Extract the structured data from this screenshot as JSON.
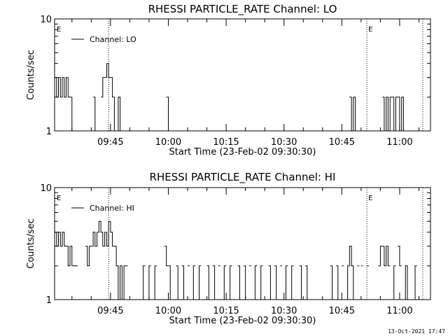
{
  "footer_timestamp": "13-Oct-2021 17:47",
  "chart_data": [
    {
      "type": "line",
      "title": "RHESSI PARTICLE_RATE Channel: LO",
      "xlabel": "Start Time (23-Feb-02 09:30:30)",
      "ylabel": "Counts/sec",
      "yscale": "log",
      "ylim": [
        1,
        10
      ],
      "ytick_labels": [
        "1",
        "10"
      ],
      "xlim": [
        "09:30:30",
        "11:08:00"
      ],
      "xtick_labels": [
        "09:45",
        "10:00",
        "10:15",
        "10:30",
        "10:45",
        "11:00"
      ],
      "legend": {
        "position": "top-left",
        "entries": [
          "Channel: LO"
        ]
      },
      "markers": [
        {
          "label": "E",
          "time": "09:30:30",
          "style": "none"
        },
        {
          "label": "",
          "time": "09:44:30",
          "style": "dotted"
        },
        {
          "label": "E",
          "time": "10:51:30",
          "style": "dotted"
        },
        {
          "label": "",
          "time": "11:06:00",
          "style": "dotted"
        }
      ],
      "series": [
        {
          "name": "Channel: LO",
          "x": [
            "09:30:30",
            "09:31:00",
            "09:31:30",
            "09:32:00",
            "09:32:30",
            "09:33:00",
            "09:33:30",
            "09:34:00",
            "09:34:30",
            "09:35:00",
            "09:37:30",
            "09:40:30",
            "09:41:00",
            "09:42:30",
            "09:43:00",
            "09:43:30",
            "09:44:00",
            "09:44:30",
            "09:45:00",
            "09:45:30",
            "09:46:00",
            "09:46:30",
            "09:47:00",
            "09:47:30",
            "09:48:00",
            "09:59:30",
            "10:00:00",
            "10:00:30",
            "10:47:00",
            "10:47:30",
            "10:48:00",
            "10:48:30",
            "10:49:00",
            "10:55:30",
            "10:56:00",
            "10:56:30",
            "10:57:00",
            "10:57:30",
            "10:58:00",
            "10:58:30",
            "10:59:00",
            "10:59:30",
            "11:00:00",
            "11:00:30",
            "11:01:00",
            "11:01:30",
            "11:02:00"
          ],
          "values": [
            3,
            2,
            3,
            2,
            3,
            2,
            3,
            2,
            2,
            1,
            1,
            2,
            1,
            2,
            3,
            3,
            4,
            3,
            3,
            2,
            1,
            1,
            2,
            1,
            1,
            2,
            1,
            1,
            2,
            1,
            2,
            1,
            1,
            2,
            1,
            2,
            1,
            2,
            2,
            1,
            2,
            2,
            1,
            2,
            1,
            1,
            1
          ]
        }
      ]
    },
    {
      "type": "line",
      "title": "RHESSI PARTICLE_RATE Channel: HI",
      "xlabel": "Start Time (23-Feb-02 09:30:30)",
      "ylabel": "Counts/sec",
      "yscale": "log",
      "ylim": [
        1,
        10
      ],
      "ytick_labels": [
        "1",
        "10"
      ],
      "xlim": [
        "09:30:30",
        "11:08:00"
      ],
      "xtick_labels": [
        "09:45",
        "10:00",
        "10:15",
        "10:30",
        "10:45",
        "11:00"
      ],
      "legend": {
        "position": "top-left",
        "entries": [
          "Channel: HI"
        ]
      },
      "markers": [
        {
          "label": "E",
          "time": "09:30:30",
          "style": "none"
        },
        {
          "label": "",
          "time": "09:44:30",
          "style": "dotted"
        },
        {
          "label": "E",
          "time": "10:51:30",
          "style": "dotted"
        },
        {
          "label": "",
          "time": "11:06:00",
          "style": "dotted"
        }
      ],
      "series": [
        {
          "name": "Channel: HI",
          "x": [
            "09:30:30",
            "09:31:00",
            "09:31:30",
            "09:32:00",
            "09:32:30",
            "09:33:00",
            "09:33:30",
            "09:34:00",
            "09:34:30",
            "09:35:00",
            "09:35:30",
            "09:36:00",
            "09:38:30",
            "09:39:00",
            "09:39:30",
            "09:40:00",
            "09:40:30",
            "09:41:00",
            "09:41:30",
            "09:42:00",
            "09:42:30",
            "09:43:00",
            "09:43:30",
            "09:44:00",
            "09:44:30",
            "09:45:00",
            "09:45:30",
            "09:46:00",
            "09:46:30",
            "09:47:00",
            "09:47:30",
            "09:48:00",
            "09:48:30",
            "09:49:00",
            "09:53:00",
            "09:53:30",
            "09:54:30",
            "09:55:00",
            "09:56:00",
            "09:56:30",
            "09:57:30",
            "09:59:00",
            "09:59:30",
            "10:00:00",
            "10:00:30",
            "10:02:00",
            "10:02:30",
            "10:03:30",
            "10:04:00",
            "10:05:00",
            "10:06:00",
            "10:06:30",
            "10:07:30",
            "10:08:00",
            "10:09:00",
            "10:10:00",
            "10:10:30",
            "10:11:30",
            "10:12:00",
            "10:13:00",
            "10:14:00",
            "10:14:30",
            "10:15:30",
            "10:16:00",
            "10:17:00",
            "10:18:00",
            "10:18:30",
            "10:19:30",
            "10:20:00",
            "10:21:00",
            "10:22:00",
            "10:22:30",
            "10:23:30",
            "10:24:00",
            "10:25:00",
            "10:26:00",
            "10:26:30",
            "10:27:30",
            "10:28:00",
            "10:29:00",
            "10:30:00",
            "10:30:30",
            "10:31:30",
            "10:32:00",
            "10:33:00",
            "10:34:00",
            "10:34:30",
            "10:35:30",
            "10:36:00",
            "10:37:00",
            "10:42:00",
            "10:42:30",
            "10:43:30",
            "10:44:00",
            "10:45:00",
            "10:46:00",
            "10:46:30",
            "10:47:00",
            "10:47:30",
            "10:48:00",
            "10:49:00",
            "10:50:00",
            "10:51:30",
            "10:54:30",
            "10:55:00",
            "10:55:30",
            "10:56:00",
            "10:56:30",
            "10:57:00",
            "10:58:00",
            "10:58:30",
            "10:59:30",
            "11:00:00",
            "11:01:00",
            "11:01:30",
            "11:02:00",
            "11:03:30",
            "11:04:00",
            "11:05:00"
          ],
          "values": [
            4,
            3,
            4,
            3,
            4,
            3,
            3,
            2,
            3,
            2,
            2,
            2,
            3,
            2,
            3,
            3,
            4,
            3,
            4,
            5,
            4,
            3,
            4,
            3,
            5,
            4,
            3,
            3,
            2,
            1,
            2,
            1,
            2,
            2,
            1,
            2,
            1,
            2,
            1,
            2,
            1,
            3,
            2,
            2,
            1,
            2,
            1,
            2,
            1,
            2,
            1,
            2,
            1,
            2,
            1,
            2,
            1,
            2,
            1,
            2,
            1,
            2,
            1,
            2,
            1,
            2,
            1,
            2,
            1,
            2,
            1,
            2,
            1,
            2,
            1,
            2,
            1,
            2,
            1,
            2,
            1,
            2,
            1,
            2,
            1,
            2,
            1,
            2,
            1,
            1,
            2,
            1,
            2,
            1,
            2,
            1,
            2,
            3,
            2,
            1,
            2,
            2,
            2,
            2,
            3,
            3,
            2,
            3,
            2,
            1,
            2,
            3,
            2,
            1,
            2,
            1,
            1,
            2,
            1
          ]
        }
      ]
    }
  ]
}
